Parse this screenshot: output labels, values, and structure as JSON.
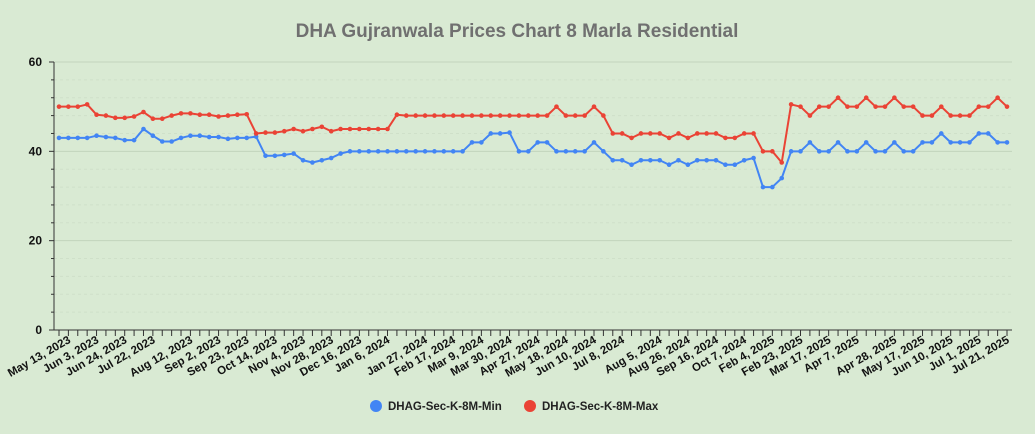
{
  "chart_data": {
    "type": "line",
    "title": "DHA Gujranwala Prices Chart 8 Marla Residential",
    "xlabel": "",
    "ylabel": "",
    "ylim": [
      0,
      60
    ],
    "yticks": [
      0,
      20,
      40,
      60
    ],
    "grid": true,
    "legend_position": "bottom",
    "x_tick_labels": [
      "May 13, 2023",
      "Jun 3, 2023",
      "Jun 24, 2023",
      "Jul 22, 2023",
      "Aug 12, 2023",
      "Sep 2, 2023",
      "Sep 23, 2023",
      "Oct 14, 2023",
      "Nov 4, 2023",
      "Nov 28, 2023",
      "Dec 16, 2023",
      "Jan 6, 2024",
      "Jan 27, 2024",
      "Feb 17, 2024",
      "Mar 9, 2024",
      "Mar 30, 2024",
      "Apr 27, 2024",
      "May 18, 2024",
      "Jun 10, 2024",
      "Jul 8, 2024",
      "Aug 5, 2024",
      "Aug 26, 2024",
      "Sep 16, 2024",
      "Oct 7, 2024",
      "Feb 4, 2025",
      "Feb 23, 2025",
      "Mar 17, 2025",
      "Apr 7, 2025",
      "Apr 28, 2025",
      "May 17, 2025",
      "Jun 10, 2025",
      "Jul 1, 2025",
      "Jul 21, 2025"
    ],
    "series": [
      {
        "name": "DHAG-Sec-K-8M-Min",
        "color": "#4285f4",
        "values": [
          43,
          43,
          43,
          43,
          43.5,
          43.2,
          43,
          42.5,
          42.5,
          45,
          43.5,
          42.2,
          42.2,
          43,
          43.5,
          43.5,
          43.2,
          43.2,
          42.8,
          43,
          43,
          43.3,
          39,
          39,
          39.2,
          39.5,
          38,
          37.5,
          38,
          38.5,
          39.5,
          40,
          40,
          40,
          40,
          40,
          40,
          40,
          40,
          40,
          40,
          40,
          40,
          40,
          42,
          42,
          44,
          44,
          44.2,
          40,
          40,
          42,
          42,
          40,
          40,
          40,
          40,
          42,
          40,
          38,
          38,
          37,
          38,
          38,
          38,
          37,
          38,
          37,
          38,
          38,
          38,
          37,
          37,
          38,
          38.5,
          32,
          32,
          34,
          40,
          40,
          42,
          40,
          40,
          42,
          40,
          40,
          42,
          40,
          40,
          42,
          40,
          40,
          42,
          42,
          44,
          42,
          42,
          42,
          44,
          44,
          42,
          42
        ]
      },
      {
        "name": "DHAG-Sec-K-8M-Max",
        "color": "#ea4335",
        "values": [
          50,
          50,
          50,
          50.5,
          48.2,
          48,
          47.5,
          47.5,
          47.8,
          48.8,
          47.3,
          47.3,
          48,
          48.5,
          48.5,
          48.2,
          48.2,
          47.8,
          48,
          48.2,
          48.3,
          44,
          44.2,
          44.2,
          44.5,
          45,
          44.5,
          45,
          45.5,
          44.5,
          45,
          45,
          45,
          45,
          45,
          45,
          48.2,
          48,
          48,
          48,
          48,
          48,
          48,
          48,
          48,
          48,
          48,
          48,
          48,
          48,
          48,
          48,
          48,
          50,
          48,
          48,
          48,
          50,
          48,
          44,
          44,
          43,
          44,
          44,
          44,
          43,
          44,
          43,
          44,
          44,
          44,
          43,
          43,
          44,
          44,
          40,
          40,
          37.5,
          50.5,
          50,
          48,
          50,
          50,
          52,
          50,
          50,
          52,
          50,
          50,
          52,
          50,
          50,
          48,
          48,
          50,
          48,
          48,
          48,
          50,
          50,
          52,
          50
        ]
      }
    ]
  }
}
